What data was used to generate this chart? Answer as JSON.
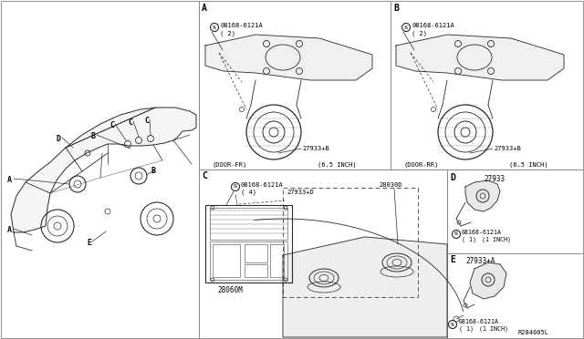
{
  "bg_color": "#ffffff",
  "line_color": "#2a2a2a",
  "light_line": "#666666",
  "panel_div_color": "#888888",
  "figsize": [
    6.4,
    3.72
  ],
  "dpi": 100,
  "parts": {
    "bolt": "08168-6121A",
    "speaker_ab": "27933+B",
    "speaker_c": "27933+D",
    "speaker_d": "27933",
    "speaker_e": "27933+A",
    "subwoofer": "28030D",
    "amplifier": "28060M"
  },
  "panel_a_footer": [
    "(DOOR-FR)",
    "(6.5 INCH)"
  ],
  "panel_b_footer": [
    "(DOOR-RR)",
    "(6.5 INCH)"
  ],
  "ref_number": "R284005L"
}
